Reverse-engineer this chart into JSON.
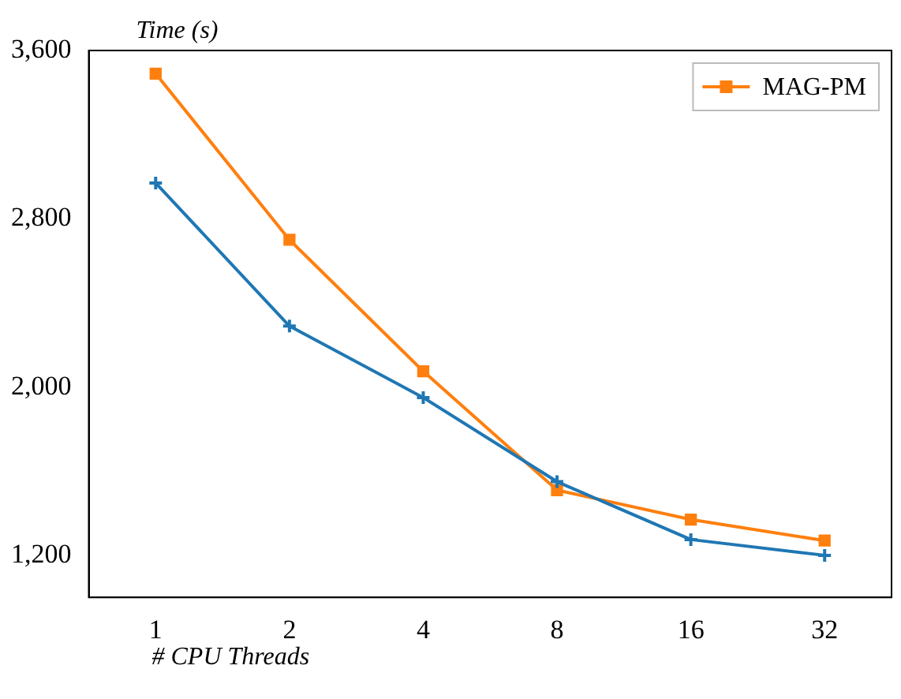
{
  "chart_data": {
    "type": "line",
    "ylabel": "Time (s)",
    "xlabel": "# CPU Threads",
    "categories": [
      "1",
      "2",
      "4",
      "8",
      "16",
      "32"
    ],
    "series": [
      {
        "color": "#1f77b4",
        "marker": "cross",
        "values": [
          2970,
          2290,
          1950,
          1550,
          1275,
          1200
        ]
      },
      {
        "name": "MAG-PM",
        "color": "#ff7f0e",
        "marker": "square",
        "values": [
          3490,
          2700,
          2075,
          1510,
          1370,
          1270
        ]
      }
    ],
    "ylim": [
      1000,
      3600
    ],
    "yticks": [
      {
        "value": 1200,
        "label": "1,200"
      },
      {
        "value": 2000,
        "label": "2,000"
      },
      {
        "value": 2800,
        "label": "2,800"
      },
      {
        "value": 3600,
        "label": "3,600"
      }
    ],
    "grid": false,
    "legend": "top right",
    "line_style": "solid"
  }
}
